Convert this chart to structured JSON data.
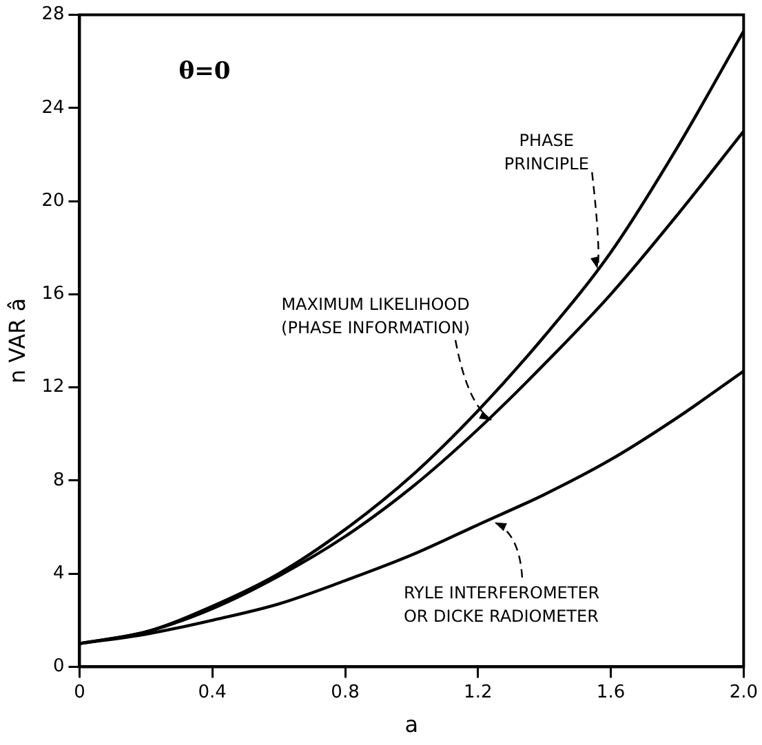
{
  "chart_data": {
    "type": "line",
    "xlabel": "a",
    "ylabel": "n VAR â",
    "x": [
      0,
      0.2,
      0.4,
      0.6,
      0.8,
      1.0,
      1.2,
      1.4,
      1.6,
      1.8,
      2.0
    ],
    "series": [
      {
        "color": "#000000",
        "values": [
          1,
          1.5,
          2.6,
          4.0,
          5.9,
          8.2,
          11.0,
          14.2,
          17.8,
          22.3,
          27.3
        ]
      },
      {
        "color": "#000000",
        "values": [
          1,
          1.5,
          2.5,
          3.9,
          5.6,
          7.7,
          10.2,
          13.0,
          16.0,
          19.4,
          23.0
        ]
      },
      {
        "color": "#000000",
        "values": [
          1,
          1.4,
          2.0,
          2.7,
          3.7,
          4.8,
          6.1,
          7.4,
          8.9,
          10.7,
          12.7
        ]
      }
    ],
    "xlim": [
      0,
      2.0
    ],
    "xticks": [
      0,
      0.4,
      0.8,
      1.2,
      1.6,
      {
        "value": 2.0,
        "label": "2.0"
      }
    ],
    "ylim": [
      0,
      28
    ],
    "yticks": [
      0,
      4,
      8,
      12,
      16,
      20,
      24,
      28
    ],
    "grid": false,
    "legend": false,
    "marker": "none",
    "line_style": "solid",
    "annotations": [
      "θ=0",
      {
        "text": "PHASE\nPRINCIPLE",
        "x": 1.56,
        "y": 17.1
      },
      {
        "text": "MAXIMUM LIKELIHOOD\n(PHASE INFORMATION)",
        "x": 1.24,
        "y": 10.6
      },
      {
        "text": "RYLE INTERFEROMETER\nOR DICKE RADIOMETER",
        "x": 1.25,
        "y": 6.2
      }
    ]
  }
}
